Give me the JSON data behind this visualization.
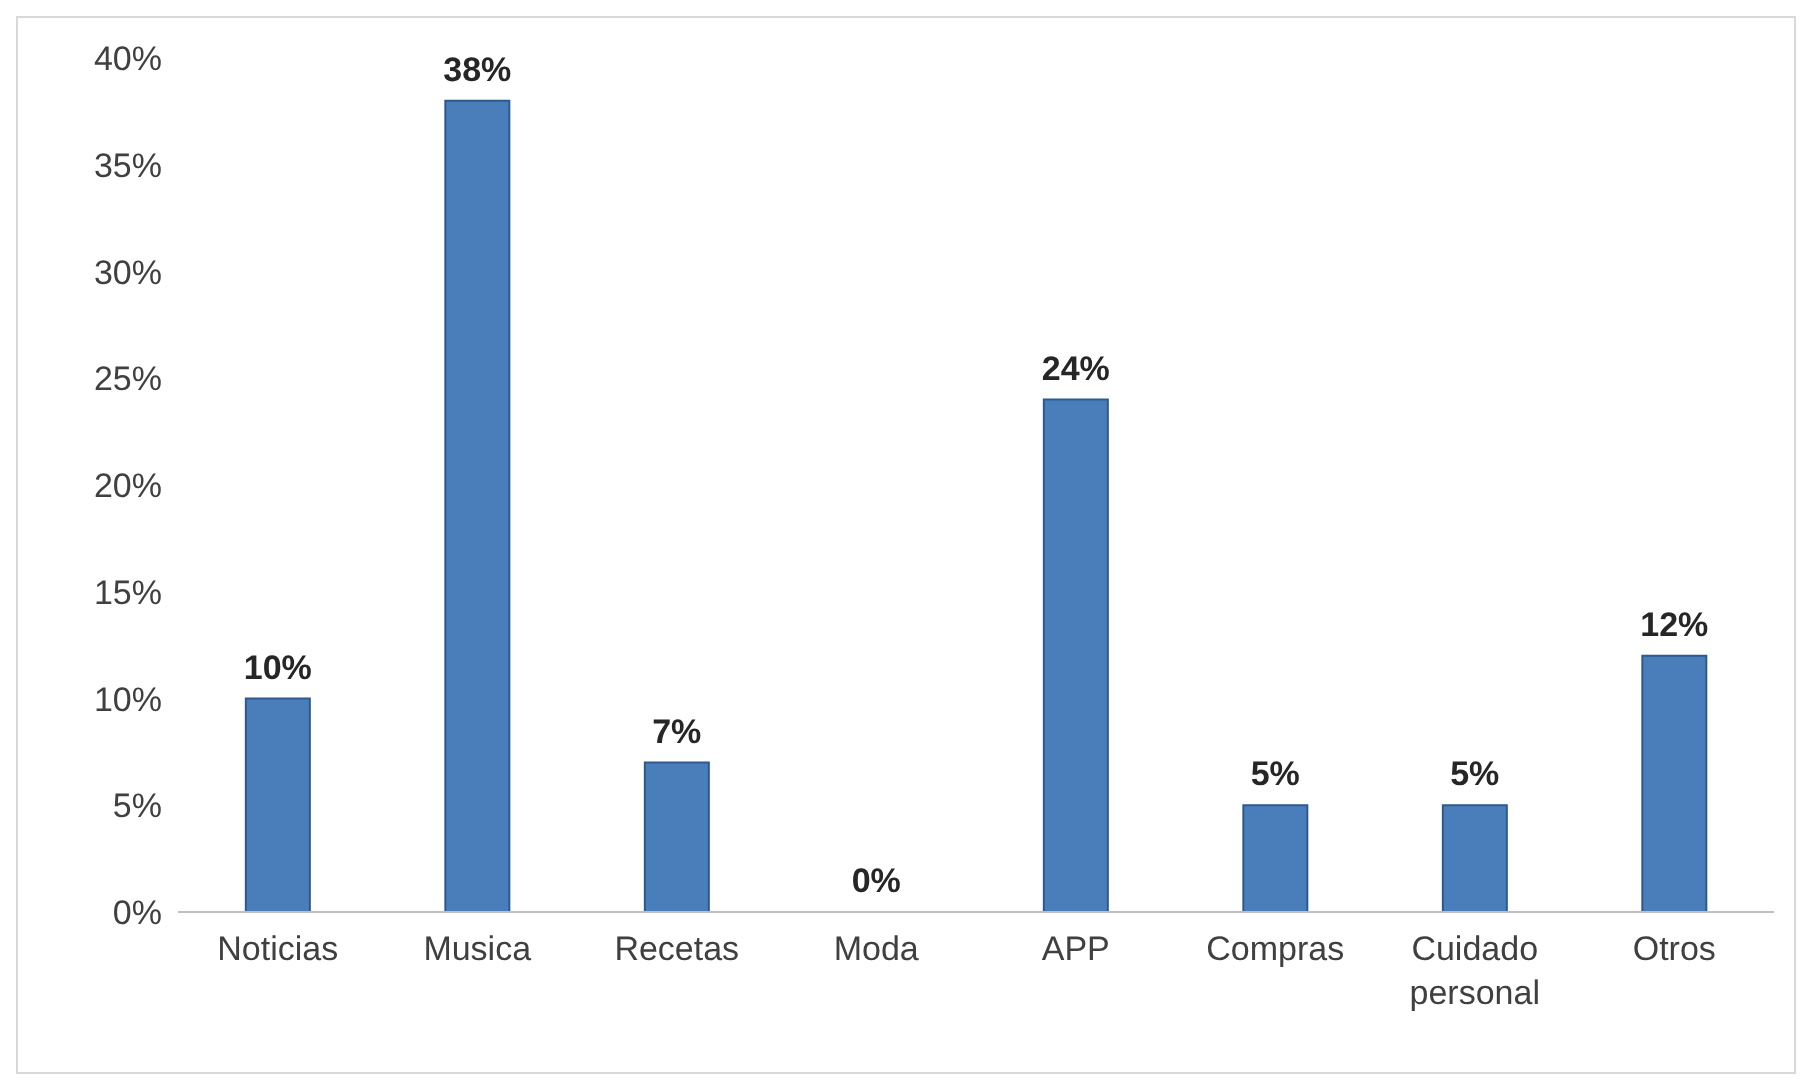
{
  "chart_data": {
    "type": "bar",
    "categories": [
      "Noticias",
      "Musica",
      "Recetas",
      "Moda",
      "APP",
      "Compras",
      "Cuidado personal",
      "Otros"
    ],
    "values": [
      10,
      38,
      7,
      0,
      24,
      5,
      5,
      12
    ],
    "value_labels": [
      "10%",
      "38%",
      "7%",
      "0%",
      "24%",
      "5%",
      "5%",
      "12%"
    ],
    "color": "#4a7ebb",
    "ylim": [
      0,
      40
    ],
    "yticks": [
      {
        "value": 0,
        "label": "0%"
      },
      {
        "value": 5,
        "label": "5%"
      },
      {
        "value": 10,
        "label": "10%"
      },
      {
        "value": 15,
        "label": "15%"
      },
      {
        "value": 20,
        "label": "20%"
      },
      {
        "value": 25,
        "label": "25%"
      },
      {
        "value": 30,
        "label": "30%"
      },
      {
        "value": 35,
        "label": "35%"
      },
      {
        "value": 40,
        "label": "40%"
      }
    ],
    "grid": false,
    "legend": false
  }
}
